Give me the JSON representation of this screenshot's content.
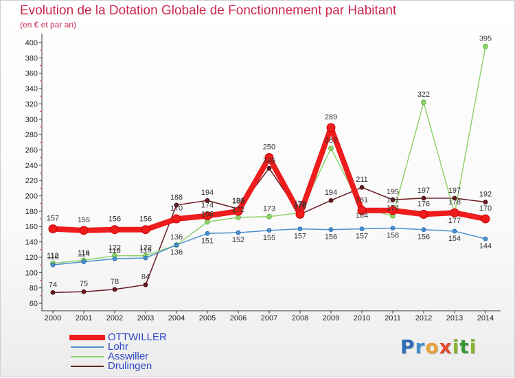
{
  "chart_data": {
    "type": "line",
    "title": "Evolution de la Dotation Globale de Fonctionnement par Habitant",
    "subtitle": "(en € et par an)",
    "xlabel": "",
    "ylabel": "",
    "x": [
      "2000",
      "2001",
      "2002",
      "2003",
      "2004",
      "2005",
      "2006",
      "2007",
      "2008",
      "2009",
      "2010",
      "2011",
      "2012",
      "2013",
      "2014"
    ],
    "ylim": [
      60,
      400
    ],
    "yticks": [
      60,
      80,
      100,
      120,
      140,
      160,
      180,
      200,
      220,
      240,
      260,
      280,
      300,
      320,
      340,
      360,
      380,
      400
    ],
    "grid": false,
    "legend_position": "bottom-left",
    "series": [
      {
        "name": "OTTWILLER",
        "color": "#ee1c1c",
        "values": [
          157,
          155,
          156,
          156,
          170,
          174,
          180,
          250,
          176,
          289,
          181,
          181,
          176,
          178,
          170
        ],
        "labels": [
          "157",
          "155",
          "156",
          "156",
          "170",
          "174",
          "180",
          "250",
          "176",
          "289",
          "181",
          "181",
          "176",
          "178",
          "170"
        ]
      },
      {
        "name": "Lohr",
        "color": "#4a8fd0",
        "values": [
          110,
          114,
          118,
          119,
          136,
          151,
          152,
          155,
          157,
          156,
          157,
          158,
          156,
          154,
          144
        ],
        "labels": [
          "110",
          "114",
          "118",
          "119",
          "136",
          "151",
          "152",
          "155",
          "157",
          "156",
          "157",
          "158",
          "156",
          "154",
          "144"
        ]
      },
      {
        "name": "Asswiller",
        "color": "#8ed36a",
        "values": [
          112,
          116,
          122,
          122,
          136,
          166,
          172,
          173,
          178,
          262,
          184,
          174,
          322,
          177,
          395
        ],
        "labels": [
          "112",
          "116",
          "122",
          "122",
          "136",
          "166",
          "172",
          "173",
          "178",
          "262",
          "184",
          "174",
          "322",
          "177",
          "395"
        ]
      },
      {
        "name": "Drulingen",
        "color": "#6b1a22",
        "values": [
          74,
          75,
          78,
          84,
          188,
          194,
          183,
          236,
          176,
          194,
          211,
          195,
          197,
          197,
          192
        ],
        "labels": [
          "74",
          "75",
          "78",
          "84",
          "188",
          "194",
          "183",
          "236",
          "176",
          "194",
          "211",
          "195",
          "197",
          "197",
          "192"
        ]
      }
    ]
  },
  "brand": "Proxiti"
}
